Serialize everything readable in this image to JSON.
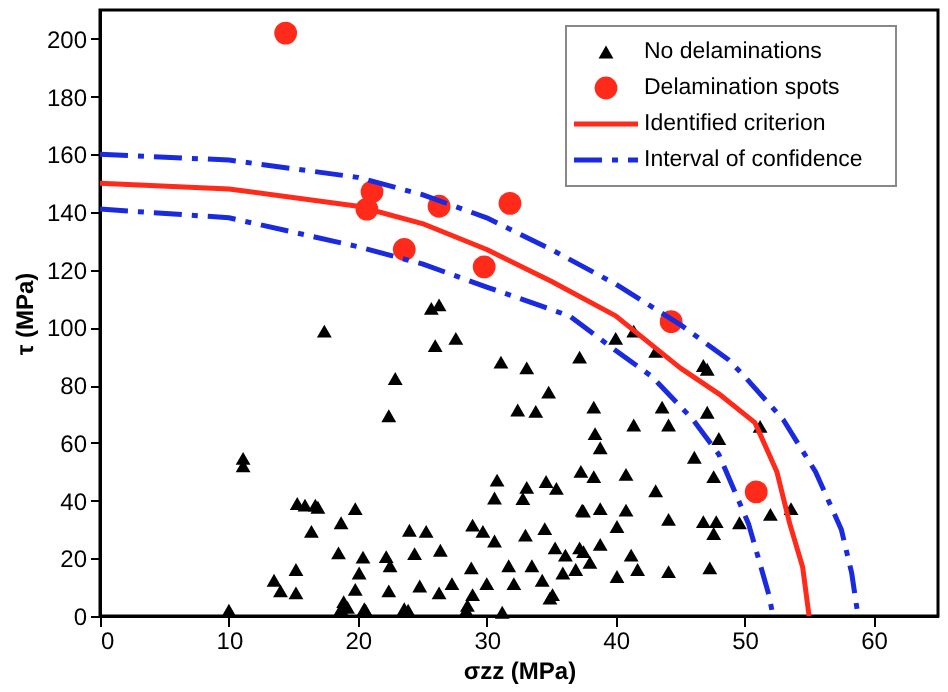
{
  "chart_data": {
    "type": "scatter",
    "xlabel": "σzz (MPa)",
    "ylabel": "τ (MPa)",
    "xlim": [
      0,
      65
    ],
    "xticks": [
      0,
      10,
      20,
      30,
      40,
      50,
      60
    ],
    "ylim": [
      0,
      210
    ],
    "yticks": [
      0,
      20,
      40,
      60,
      80,
      100,
      120,
      140,
      160,
      180,
      200
    ],
    "grid": false,
    "legend": "top right",
    "series": [
      {
        "name": "No delaminations",
        "marker": "triangle",
        "color": "#000000",
        "x": [
          25.7,
          26.3,
          17.4,
          26.0,
          27.6,
          22.9,
          22.4,
          31.1,
          33.1,
          34.8,
          32.4,
          33.8,
          37.2,
          11.1,
          11.1,
          15.9,
          16.7,
          16.9,
          15.3,
          19.8,
          16.4,
          18.7,
          30.8,
          30.6,
          33.1,
          32.8,
          34.6,
          35.4,
          37.3,
          37.4,
          24.0,
          25.3,
          28.9,
          29.7,
          30.6,
          33.0,
          34.5,
          18.5,
          20.4,
          22.2,
          24.4,
          26.4,
          22.5,
          20.1,
          15.2,
          13.5,
          14.0,
          15.2,
          19.8,
          22.4,
          19.2,
          20.5,
          23.6,
          24.8,
          26.3,
          27.3,
          28.8,
          28.9,
          28.5,
          30.0,
          31.2,
          31.7,
          32.1,
          33.5,
          34.3,
          34.9,
          35.3,
          36.1,
          36.9,
          37.5,
          35.9,
          10.0,
          18.7,
          20.6,
          23.9,
          28.4,
          18.9,
          40.0,
          41.4,
          43.1,
          46.8,
          47.1,
          38.3,
          41.4,
          43.6,
          44.1,
          47.1,
          51.2,
          48.0,
          38.4,
          38.8,
          46.1,
          47.6,
          38.3,
          40.8,
          43.1,
          37.5,
          38.8,
          40.8,
          44.1,
          46.8,
          47.8,
          49.6,
          52.0,
          53.6,
          40.1,
          47.6,
          41.2,
          38.0,
          41.7,
          40.1,
          44.1,
          47.3,
          35.1,
          38.8,
          37.2
        ],
        "values": [
          106.6,
          107.8,
          98.7,
          93.7,
          96.2,
          82.3,
          69.4,
          88,
          86,
          77.6,
          71.4,
          70.9,
          89.7,
          54.6,
          52,
          38.4,
          38.4,
          37.7,
          39,
          37.2,
          29.3,
          32.3,
          47.1,
          40.9,
          44.6,
          40.7,
          46.6,
          44.2,
          50.1,
          36.7,
          29.7,
          29.3,
          31.5,
          29.3,
          26,
          28,
          30.3,
          21.9,
          20.4,
          20.6,
          21.6,
          22.8,
          17.4,
          14.9,
          16.1,
          12.4,
          8.7,
          8,
          9.2,
          8.7,
          3,
          2.5,
          2.5,
          10.4,
          8,
          11.2,
          16.7,
          7.4,
          3.7,
          11.2,
          1.3,
          17.4,
          11.2,
          17.4,
          12.4,
          6.2,
          23.6,
          21.1,
          16.1,
          22.3,
          14.9,
          2,
          2.5,
          2,
          2,
          2,
          5,
          96.2,
          98.7,
          91.7,
          86.8,
          85.5,
          72.4,
          66.2,
          72.4,
          66.2,
          70.6,
          65.7,
          61.5,
          63.2,
          58.3,
          55,
          48.3,
          48.3,
          49.1,
          43.4,
          36.4,
          37.2,
          36.7,
          33.5,
          32.7,
          32.7,
          32.3,
          35.2,
          37.2,
          31,
          28.6,
          21.1,
          18.6,
          16.1,
          13.7,
          15.4,
          16.7,
          7.4,
          24.8,
          23.6
        ]
      },
      {
        "name": "Delamination spots",
        "marker": "circle",
        "color": "#ff2a1a",
        "x": [
          14.4,
          21.1,
          20.7,
          26.3,
          23.6,
          31.8,
          29.8,
          44.3,
          50.9
        ],
        "values": [
          202,
          147,
          141,
          142,
          127,
          143,
          121,
          102,
          43
        ]
      },
      {
        "name": "Identified criterion",
        "type": "line",
        "line_style": "solid",
        "color": "#ff2a1a",
        "x": [
          0,
          10,
          20,
          25,
          30,
          35,
          40,
          45,
          48,
          50.8,
          52.5,
          53.5,
          54.5,
          55
        ],
        "values": [
          150,
          148,
          142,
          136,
          127,
          116,
          104,
          86,
          77,
          67,
          50,
          32,
          17,
          0
        ]
      },
      {
        "name": "Interval of confidence",
        "type": "line",
        "line_style": "dashed",
        "color": "#1a2adf",
        "x": [
          0,
          10,
          20,
          25,
          30,
          35,
          40,
          45,
          48.7,
          50,
          53,
          55.5,
          57.5,
          58.3,
          58.8
        ],
        "values": [
          160,
          158,
          152,
          146,
          138,
          127,
          115,
          101,
          89,
          83,
          68,
          50,
          30,
          15,
          0
        ]
      },
      {
        "type": "line",
        "line_style": "dashed",
        "color": "#1a2adf",
        "x": [
          0,
          10,
          20,
          25,
          30,
          36.4,
          40,
          42.8,
          46,
          48,
          50.3,
          51.2,
          51.9,
          52.2
        ],
        "values": [
          141,
          138,
          128,
          122,
          114,
          104,
          92,
          83,
          68,
          56,
          32,
          18,
          7,
          0
        ]
      }
    ]
  }
}
